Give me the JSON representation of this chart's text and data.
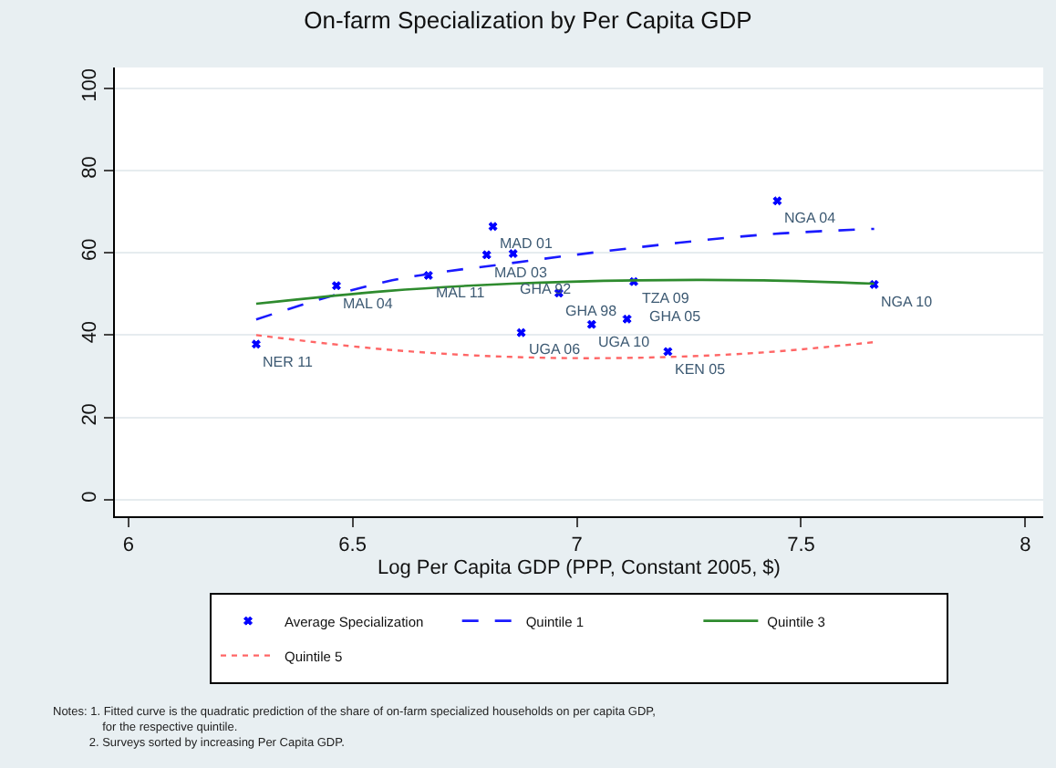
{
  "chart_data": {
    "type": "scatter",
    "title": "On-farm Specialization by Per Capita GDP",
    "xlabel": "Log Per Capita GDP (PPP, Constant 2005, $)",
    "xlim": [
      5.97,
      8.04
    ],
    "xticks": [
      6,
      6.5,
      7,
      7.5,
      8
    ],
    "ylim": [
      -4,
      105
    ],
    "yticks": [
      0,
      20,
      40,
      60,
      80,
      100
    ],
    "grid": "y",
    "legend": "bottom",
    "series": [
      {
        "name": "Average Specialization",
        "marker": "cross",
        "color": "#0000ff",
        "x": [
          6.285,
          6.464,
          6.669,
          6.799,
          6.813,
          6.858,
          6.876,
          6.96,
          7.033,
          7.112,
          7.127,
          7.203,
          7.447,
          7.663
        ],
        "values": [
          37.8,
          52.0,
          54.5,
          59.5,
          66.4,
          59.8,
          40.6,
          50.2,
          42.6,
          43.9,
          53.0,
          36.0,
          72.6,
          52.3
        ]
      },
      {
        "name": "Quintile 1",
        "type": "line",
        "line_style": "dashed",
        "color": "#1a1aff",
        "x": [
          6.285,
          6.575,
          6.855,
          7.135,
          7.416,
          7.663
        ],
        "values": [
          43.8,
          53.0,
          57.5,
          61.3,
          64.4,
          65.8
        ]
      },
      {
        "name": "Quintile 3",
        "type": "line",
        "line_style": "solid",
        "color": "#2e8b2e",
        "x": [
          6.285,
          6.575,
          6.855,
          7.135,
          7.416,
          7.663
        ],
        "values": [
          47.6,
          50.7,
          52.5,
          53.3,
          53.3,
          52.5
        ]
      },
      {
        "name": "Quintile 5",
        "type": "line",
        "line_style": "dotted",
        "color": "#ff6666",
        "x": [
          6.285,
          6.575,
          6.855,
          7.135,
          7.416,
          7.663
        ],
        "values": [
          40.0,
          36.5,
          34.7,
          34.5,
          35.8,
          38.3
        ]
      }
    ],
    "annotations": [
      {
        "text": "NER 11",
        "x": 6.285,
        "y": 37.8
      },
      {
        "text": "MAL 04",
        "x": 6.464,
        "y": 52.0
      },
      {
        "text": "MAL 11",
        "x": 6.669,
        "y": 54.5
      },
      {
        "text": "MAD 03",
        "x": 6.799,
        "y": 59.5
      },
      {
        "text": "MAD 01",
        "x": 6.813,
        "y": 66.4
      },
      {
        "text": "GHA 92",
        "x": 6.858,
        "y": 59.8
      },
      {
        "text": "UGA 06",
        "x": 6.876,
        "y": 40.6
      },
      {
        "text": "GHA 98",
        "x": 6.96,
        "y": 50.2
      },
      {
        "text": "UGA 10",
        "x": 7.033,
        "y": 42.6
      },
      {
        "text": "GHA 05",
        "x": 7.112,
        "y": 43.9
      },
      {
        "text": "TZA 09",
        "x": 7.127,
        "y": 53.0
      },
      {
        "text": "KEN 05",
        "x": 7.203,
        "y": 36.0
      },
      {
        "text": "NGA 04",
        "x": 7.447,
        "y": 72.6
      },
      {
        "text": "NGA 10",
        "x": 7.663,
        "y": 52.3
      },
      "Notes: 1. Fitted curve is the quadratic prediction of the share of on-farm specialized households on per capita GDP,\n               for the respective quintile.\n           2. Surveys sorted by increasing Per Capita GDP."
    ]
  }
}
